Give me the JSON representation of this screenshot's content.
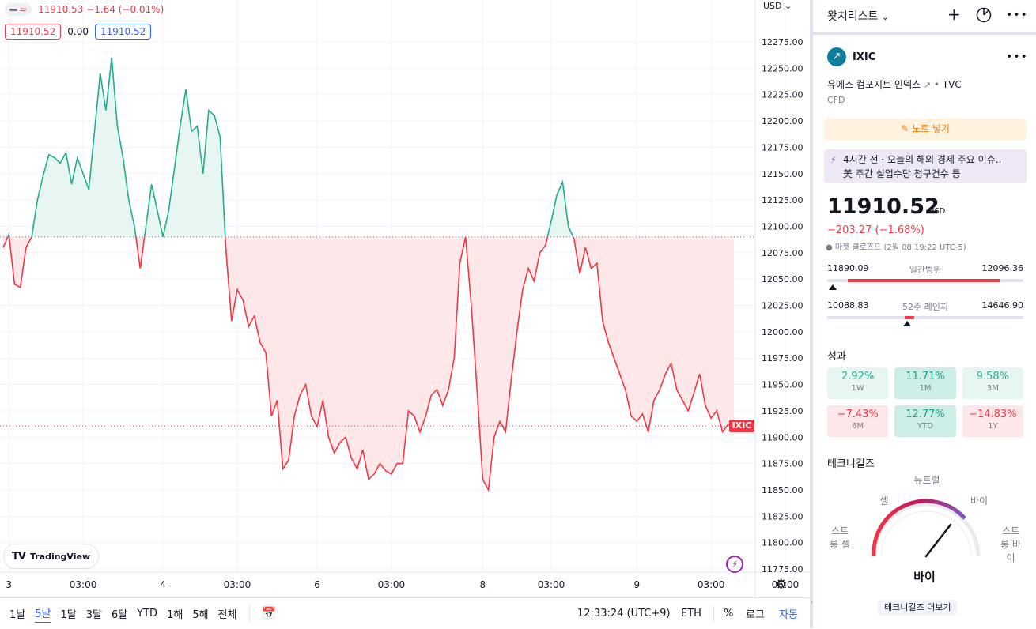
{
  "chart": {
    "currency": "USD",
    "ohlc_text": "11910.53  −1.64 (−0.01%)",
    "legend_values": [
      "11910.52",
      "0.00",
      "11910.52"
    ],
    "last_price_label": "IXIC",
    "branding": "TradingView",
    "colors": {
      "up": "#22ab94",
      "down": "#f23645",
      "up_fill": "#e8f6f2",
      "down_fill": "#fde7e9"
    }
  },
  "chart_data": {
    "type": "area",
    "title": "",
    "xlabel": "",
    "ylabel": "",
    "baseline": 12090,
    "last_value": 11910.52,
    "ylim": [
      11765,
      12300
    ],
    "y_ticks": [
      12275,
      12250,
      12225,
      12200,
      12175,
      12150,
      12125,
      12100,
      12075,
      12050,
      12025,
      12000,
      11975,
      11950,
      11925,
      11900,
      11875,
      11850,
      11825,
      11800,
      11775
    ],
    "x_tick_labels": [
      "3",
      "03:00",
      "4",
      "03:00",
      "6",
      "03:00",
      "8",
      "03:00",
      "9",
      "03:00",
      "06:00"
    ],
    "x_tick_index": [
      1,
      14,
      28,
      41,
      55,
      68,
      84,
      96,
      111,
      124,
      137
    ],
    "values": [
      12080,
      12092,
      12045,
      12042,
      12080,
      12090,
      12125,
      12148,
      12168,
      12165,
      12160,
      12170,
      12140,
      12165,
      12150,
      12135,
      12190,
      12245,
      12210,
      12260,
      12195,
      12165,
      12125,
      12100,
      12060,
      12100,
      12140,
      12115,
      12090,
      12115,
      12155,
      12195,
      12230,
      12190,
      12195,
      12150,
      12210,
      12205,
      12185,
      12080,
      12010,
      12040,
      12030,
      12005,
      12015,
      11990,
      11980,
      11920,
      11935,
      11870,
      11878,
      11920,
      11940,
      11950,
      11920,
      11910,
      11935,
      11900,
      11885,
      11895,
      11900,
      11880,
      11870,
      11888,
      11860,
      11865,
      11875,
      11868,
      11865,
      11875,
      11875,
      11925,
      11920,
      11905,
      11920,
      11940,
      11945,
      11930,
      11945,
      11975,
      12065,
      12090,
      12025,
      11945,
      11860,
      11850,
      11900,
      11915,
      11905,
      11955,
      12000,
      12040,
      12060,
      12048,
      12075,
      12082,
      12105,
      12130,
      12142,
      12100,
      12088,
      12055,
      12080,
      12060,
      12065,
      12010,
      11990,
      11975,
      11960,
      11945,
      11920,
      11915,
      11922,
      11905,
      11935,
      11945,
      11960,
      11970,
      11945,
      11935,
      11925,
      11942,
      11960,
      11930,
      11918,
      11925,
      11905,
      11912,
      11910
    ]
  },
  "bottom_bar": {
    "ranges": [
      "1날",
      "5날",
      "1달",
      "3달",
      "6달",
      "YTD",
      "1해",
      "5해",
      "전체"
    ],
    "active_range": "5날",
    "time": "12:33:24 (UTC+9)",
    "session": "ETH",
    "percent": "%",
    "log": "로그",
    "auto": "자동"
  },
  "watchlist": {
    "title": "왓치리스트"
  },
  "symbol": {
    "ticker": "IXIC",
    "description": "유에스 컴포지트 인덱스",
    "exchange": "TVC",
    "type": "CFD",
    "note_button": "노트 넣기",
    "news_line1": "4시간 전 · 오늘의 해외 경제 주요 이슈..",
    "news_line2": "美 주간 실업수당 청구건수 등",
    "price": "11910.52",
    "currency": "USD",
    "change": "−203.27 (−1.68%)",
    "market_status": "● 마켓 클로즈드   (2월 08 19:22 UTC-5)"
  },
  "day_range": {
    "low": "11890.09",
    "label": "일간범위",
    "high": "12096.36",
    "marker_fraction": 0.02
  },
  "week52_range": {
    "low": "10088.83",
    "label": "52주 레인지",
    "high": "14646.90",
    "marker_fraction": 0.4
  },
  "performance": {
    "title": "성과",
    "items": [
      {
        "value": "2.92%",
        "label": "1W",
        "tone": "pos-weak"
      },
      {
        "value": "11.71%",
        "label": "1M",
        "tone": "pos-strong"
      },
      {
        "value": "9.58%",
        "label": "3M",
        "tone": "pos-weak"
      },
      {
        "value": "−7.43%",
        "label": "6M",
        "tone": "neg-weak"
      },
      {
        "value": "12.77%",
        "label": "YTD",
        "tone": "pos-strong"
      },
      {
        "value": "−14.83%",
        "label": "1Y",
        "tone": "neg-weak"
      }
    ]
  },
  "technicals": {
    "title": "테크니컬즈",
    "labels": {
      "neutral": "뉴트럴",
      "sell": "셀",
      "buy": "바이",
      "strong_sell": "스트\n롱 셀",
      "strong_buy": "스트\n롱 바\n이"
    },
    "verdict": "바이",
    "more_button": "테크니컬즈 더보기"
  }
}
